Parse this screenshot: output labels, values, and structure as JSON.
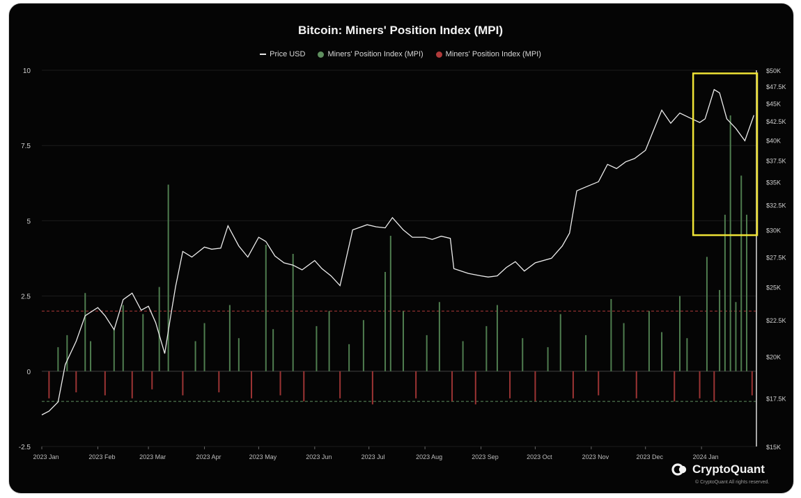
{
  "chart_data": {
    "type": "bar",
    "title": "Bitcoin: Miners' Position Index (MPI)",
    "legend": [
      {
        "label": "Price USD",
        "color": "#e8e8e8",
        "kind": "line"
      },
      {
        "label": "Miners' Position Index (MPI)",
        "color": "#5f8f5f",
        "kind": "bar-positive"
      },
      {
        "label": "Miners' Position Index (MPI)",
        "color": "#b03a3a",
        "kind": "bar-negative"
      }
    ],
    "left_axis": {
      "min": -2.5,
      "max": 10,
      "ticks": [
        "10",
        "7.5",
        "5",
        "2.5",
        "0",
        "-2.5"
      ]
    },
    "right_axis": {
      "min": 15000,
      "max": 50000,
      "scale": "log",
      "ticks": [
        "$50K",
        "$47.5K",
        "$45K",
        "$42.5K",
        "$40K",
        "$37.5K",
        "$35K",
        "$32.5K",
        "$30K",
        "$27.5K",
        "$25K",
        "$22.5K",
        "$20K",
        "$17.5K",
        "$15K"
      ]
    },
    "x_axis": {
      "start": "2023-01-01",
      "end": "2024-01-31",
      "ticks": [
        "2023 Jan",
        "2023 Feb",
        "2023 Mar",
        "2023 Apr",
        "2023 May",
        "2023 Jun",
        "2023 Jul",
        "2023 Aug",
        "2023 Sep",
        "2023 Oct",
        "2023 Nov",
        "2023 Dec",
        "2024 Jan"
      ]
    },
    "reference_lines": [
      {
        "value": 2,
        "color": "#b03a3a"
      },
      {
        "value": -1,
        "color": "#5f8f5f"
      }
    ],
    "highlight_box": {
      "x_start": "2024-01-01",
      "x_end": "2024-01-31",
      "price_low": 29500,
      "price_high": 49500,
      "color": "#f0e436"
    },
    "price_series": {
      "name": "Price USD",
      "x": [
        "2023-01-01",
        "2023-01-05",
        "2023-01-10",
        "2023-01-14",
        "2023-01-20",
        "2023-01-25",
        "2023-02-01",
        "2023-02-05",
        "2023-02-10",
        "2023-02-15",
        "2023-02-20",
        "2023-02-25",
        "2023-03-01",
        "2023-03-05",
        "2023-03-10",
        "2023-03-13",
        "2023-03-16",
        "2023-03-20",
        "2023-03-25",
        "2023-04-01",
        "2023-04-05",
        "2023-04-10",
        "2023-04-14",
        "2023-04-20",
        "2023-04-25",
        "2023-05-01",
        "2023-05-05",
        "2023-05-10",
        "2023-05-15",
        "2023-05-20",
        "2023-05-25",
        "2023-06-01",
        "2023-06-05",
        "2023-06-10",
        "2023-06-15",
        "2023-06-20",
        "2023-06-22",
        "2023-06-30",
        "2023-07-05",
        "2023-07-10",
        "2023-07-14",
        "2023-07-20",
        "2023-07-25",
        "2023-08-01",
        "2023-08-05",
        "2023-08-10",
        "2023-08-15",
        "2023-08-17",
        "2023-08-25",
        "2023-09-01",
        "2023-09-05",
        "2023-09-10",
        "2023-09-15",
        "2023-09-20",
        "2023-09-25",
        "2023-10-01",
        "2023-10-10",
        "2023-10-16",
        "2023-10-20",
        "2023-10-24",
        "2023-10-30",
        "2023-11-05",
        "2023-11-10",
        "2023-11-15",
        "2023-11-20",
        "2023-11-25",
        "2023-12-01",
        "2023-12-05",
        "2023-12-10",
        "2023-12-15",
        "2023-12-20",
        "2023-12-25",
        "2023-12-31",
        "2024-01-03",
        "2024-01-08",
        "2024-01-11",
        "2024-01-15",
        "2024-01-20",
        "2024-01-25",
        "2024-01-30"
      ],
      "values": [
        16600,
        16800,
        17300,
        19500,
        21000,
        22800,
        23400,
        22800,
        21800,
        24000,
        24500,
        23200,
        23500,
        22300,
        20200,
        22500,
        25000,
        28000,
        27500,
        28400,
        28200,
        28300,
        30400,
        28500,
        27500,
        29300,
        28900,
        27600,
        27000,
        26800,
        26400,
        27200,
        26500,
        25900,
        25100,
        28500,
        30000,
        30500,
        30300,
        30200,
        31200,
        30000,
        29300,
        29300,
        29100,
        29400,
        29200,
        26500,
        26100,
        25900,
        25800,
        25900,
        26600,
        27100,
        26300,
        27000,
        27400,
        28500,
        29700,
        34000,
        34500,
        35000,
        37000,
        36500,
        37300,
        37700,
        38700,
        41000,
        44000,
        42200,
        43600,
        43000,
        42300,
        42800,
        47000,
        46500,
        42800,
        41500,
        39900,
        43300
      ]
    },
    "mpi_series": {
      "name": "Miners' Position Index (MPI)",
      "x": [
        "2023-01-05",
        "2023-01-10",
        "2023-01-15",
        "2023-01-20",
        "2023-01-25",
        "2023-01-28",
        "2023-02-05",
        "2023-02-10",
        "2023-02-15",
        "2023-02-20",
        "2023-02-26",
        "2023-03-03",
        "2023-03-07",
        "2023-03-12",
        "2023-03-20",
        "2023-03-27",
        "2023-04-01",
        "2023-04-09",
        "2023-04-15",
        "2023-04-20",
        "2023-04-27",
        "2023-05-05",
        "2023-05-09",
        "2023-05-13",
        "2023-05-20",
        "2023-05-26",
        "2023-06-02",
        "2023-06-09",
        "2023-06-15",
        "2023-06-20",
        "2023-06-28",
        "2023-07-03",
        "2023-07-10",
        "2023-07-13",
        "2023-07-20",
        "2023-07-27",
        "2023-08-02",
        "2023-08-09",
        "2023-08-16",
        "2023-08-22",
        "2023-08-29",
        "2023-09-04",
        "2023-09-10",
        "2023-09-17",
        "2023-09-24",
        "2023-10-01",
        "2023-10-08",
        "2023-10-15",
        "2023-10-22",
        "2023-10-29",
        "2023-11-05",
        "2023-11-12",
        "2023-11-19",
        "2023-11-26",
        "2023-12-03",
        "2023-12-10",
        "2023-12-17",
        "2023-12-20",
        "2023-12-24",
        "2023-12-31",
        "2024-01-04",
        "2024-01-08",
        "2024-01-11",
        "2024-01-14",
        "2024-01-17",
        "2024-01-20",
        "2024-01-23",
        "2024-01-26",
        "2024-01-29"
      ],
      "values": [
        -0.9,
        0.8,
        1.2,
        -0.7,
        2.6,
        1.0,
        -0.8,
        1.4,
        2.2,
        -0.9,
        1.9,
        -0.6,
        2.8,
        6.2,
        -0.8,
        1.0,
        1.6,
        -0.7,
        2.2,
        1.1,
        -0.9,
        4.2,
        1.4,
        -0.8,
        3.9,
        -1.0,
        1.5,
        2.0,
        -0.9,
        0.9,
        1.7,
        -1.1,
        3.3,
        4.5,
        2.0,
        -0.9,
        1.2,
        2.3,
        -1.0,
        1.0,
        -1.1,
        1.5,
        2.2,
        -0.9,
        1.1,
        -1.0,
        0.8,
        1.9,
        -0.9,
        1.2,
        -0.8,
        2.4,
        1.6,
        -0.9,
        2.0,
        1.3,
        -1.0,
        2.5,
        1.1,
        -0.9,
        3.8,
        -1.0,
        2.7,
        5.2,
        8.5,
        2.3,
        6.5,
        5.2,
        -0.8
      ]
    },
    "grid": true
  },
  "brand": {
    "name": "CryptoQuant",
    "copyright": "© CryptoQuant All rights reserved."
  }
}
